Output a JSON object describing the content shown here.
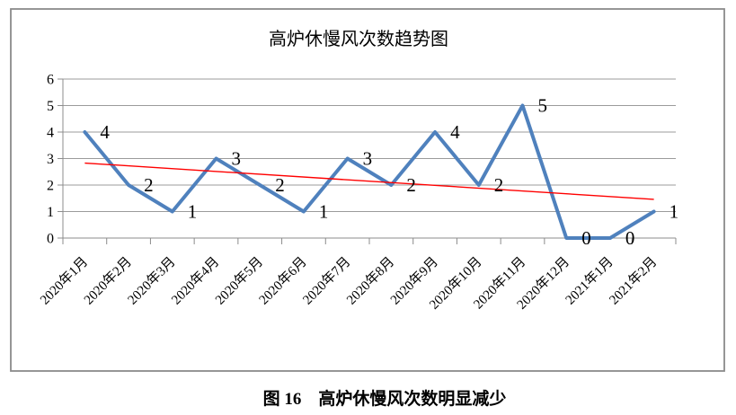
{
  "page": {
    "caption": "图 16　高炉休慢风次数明显减少"
  },
  "chart_data": {
    "type": "line",
    "title": "高炉休慢风次数趋势图",
    "categories": [
      "2020年1月",
      "2020年2月",
      "2020年3月",
      "2020年4月",
      "2020年5月",
      "2020年6月",
      "2020年7月",
      "2020年8月",
      "2020年9月",
      "2020年10月",
      "2020年11月",
      "2020年12月",
      "2021年1月",
      "2021年2月"
    ],
    "values": [
      4,
      2,
      1,
      3,
      2,
      1,
      3,
      2,
      4,
      2,
      5,
      0,
      0,
      1
    ],
    "data_labels_shown": true,
    "xlabel": "",
    "ylabel": "",
    "ylim": [
      0,
      6
    ],
    "ytick_step": 1,
    "grid": true,
    "legend_position": "none",
    "series_color": "#4F81BD",
    "trendline": {
      "type": "linear",
      "color": "#FF0000",
      "start_value": 2.83,
      "end_value": 1.46
    },
    "grid_color": "#9B9B9B",
    "axis_color": "#8C8C8C",
    "frame_color": "#8A8A8A",
    "text_color": "#000000"
  }
}
